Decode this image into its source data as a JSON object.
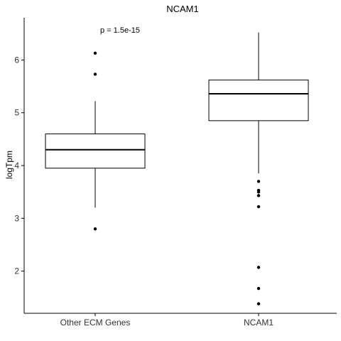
{
  "chart_data": {
    "type": "boxplot",
    "title": "NCAM1",
    "xlabel": "",
    "ylabel": "logTpm",
    "ylim": [
      1.2,
      6.8
    ],
    "yticks": [
      "2",
      "3",
      "4",
      "5",
      "6"
    ],
    "grid": false,
    "legend": "none",
    "annotation": "p = 1.5e-15",
    "categories": [
      "Other ECM Genes",
      "NCAM1"
    ],
    "boxes": [
      {
        "name": "Other ECM Genes",
        "whisker_low": 3.2,
        "q1": 3.95,
        "median": 4.3,
        "q3": 4.6,
        "whisker_high": 5.22,
        "outliers": [
          6.13,
          5.73,
          2.8
        ]
      },
      {
        "name": "NCAM1",
        "whisker_low": 3.85,
        "q1": 4.85,
        "median": 5.36,
        "q3": 5.62,
        "whisker_high": 6.52,
        "outliers": [
          3.7,
          3.53,
          3.5,
          3.43,
          3.22,
          2.07,
          1.67,
          1.38
        ]
      }
    ]
  }
}
